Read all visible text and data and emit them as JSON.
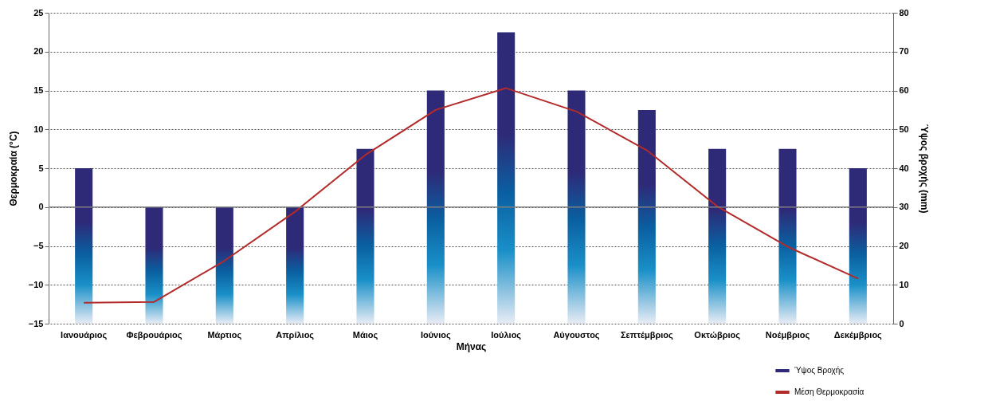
{
  "chart_data": {
    "type": "bar",
    "xlabel": "Μήνας",
    "ylabel": "Θερμοκραία (°C)",
    "y2label": "Ύψος βροχής (mm)",
    "categories": [
      "Ιανουάριος",
      "Φεβρουάριος",
      "Μάρτιος",
      "Απρίλιος",
      "Μάιος",
      "Ιούνιος",
      "Ιούλιος",
      "Αύγουστος",
      "Σεπτέμβριος",
      "Οκτώβριος",
      "Νοέμβριος",
      "Δεκέμβριος"
    ],
    "series": [
      {
        "name": "Ύψος Βροχής",
        "axis": "y2",
        "color": "#2e2a78",
        "values": [
          40,
          30,
          30,
          30,
          45,
          60,
          75,
          60,
          55,
          45,
          45,
          40
        ]
      },
      {
        "name": "Μέση Θερμοκρασία",
        "type": "line",
        "axis": "y",
        "color": "#b22a2a",
        "values": [
          -12.3,
          -12.2,
          -6.9,
          -0.6,
          6.7,
          12.5,
          15.3,
          12.3,
          7.3,
          0.1,
          -5.1,
          -9.2
        ]
      }
    ],
    "ylim": [
      -15,
      25
    ],
    "yticks": [
      -15,
      -10,
      -5,
      0,
      5,
      10,
      15,
      20,
      25
    ],
    "y2lim": [
      0,
      80
    ],
    "y2ticks": [
      0,
      10,
      20,
      30,
      40,
      50,
      60,
      70,
      80
    ],
    "ref_lines": [
      {
        "axis": "y",
        "value": 0,
        "color": "#808080"
      }
    ],
    "grid": "y",
    "legend": "bottom right",
    "marker": "none",
    "line_style": "solid"
  }
}
